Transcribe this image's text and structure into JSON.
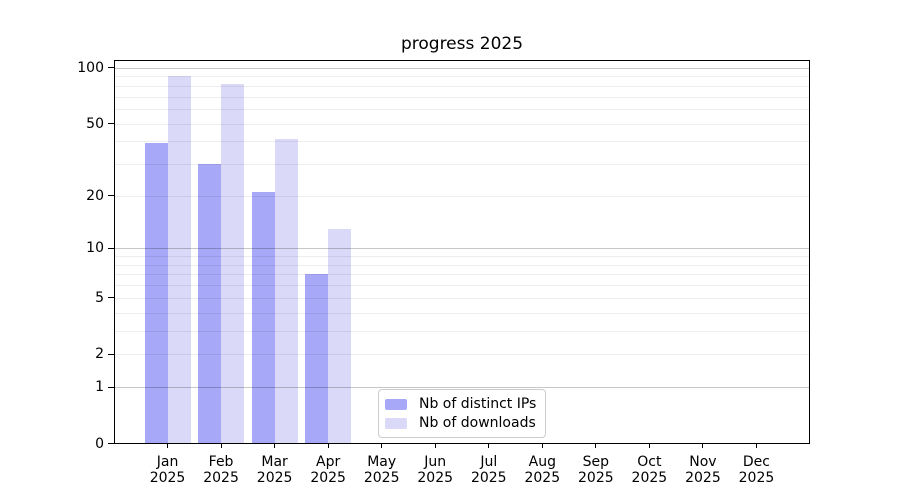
{
  "title": "progress 2025",
  "chart_data": {
    "type": "bar",
    "title": "progress 2025",
    "categories": [
      "Jan",
      "Feb",
      "Mar",
      "Apr",
      "May",
      "Jun",
      "Jul",
      "Aug",
      "Sep",
      "Oct",
      "Nov",
      "Dec"
    ],
    "year": "2025",
    "series": [
      {
        "name": "Nb of distinct IPs",
        "color": "#a8a8f8",
        "values": [
          39,
          30,
          21,
          7,
          null,
          null,
          null,
          null,
          null,
          null,
          null,
          null
        ]
      },
      {
        "name": "Nb of downloads",
        "color": "#dadaf8",
        "values": [
          90,
          82,
          41,
          13,
          null,
          null,
          null,
          null,
          null,
          null,
          null,
          null
        ]
      }
    ],
    "xlabel": "",
    "ylabel": "",
    "yticks": [
      0,
      1,
      2,
      5,
      10,
      20,
      50,
      100
    ],
    "major_gridlines": [
      1,
      10,
      100
    ],
    "minor_gridlines": [
      2,
      3,
      4,
      5,
      6,
      7,
      8,
      9,
      20,
      30,
      40,
      50,
      60,
      70,
      80,
      90
    ],
    "scale": "log10(1+y)",
    "ylim": [
      0,
      111
    ],
    "xlim": [
      0,
      13
    ],
    "grid": "horizontal, drawn above bars",
    "legend": {
      "position": "lower center",
      "entries": [
        "Nb of distinct IPs",
        "Nb of downloads"
      ]
    }
  },
  "colors": {
    "distinct_ips": "#a8a8f8",
    "downloads": "#dadaf8",
    "major_grid": "#c7c7c7",
    "minor_grid": "#ededed",
    "axis": "#000000",
    "background": "#ffffff"
  }
}
